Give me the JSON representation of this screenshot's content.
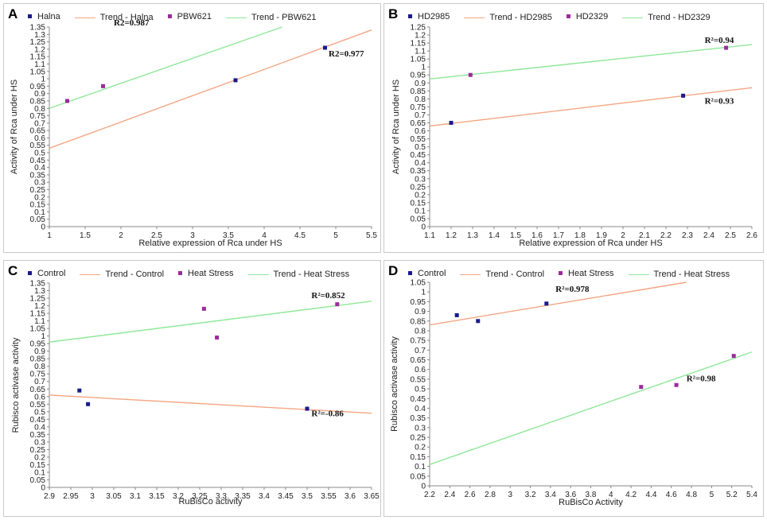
{
  "colors": {
    "series_a": "#1a1a8c",
    "series_b": "#9b2b9b",
    "trend_a": "#f4a783",
    "trend_b": "#8fe89a",
    "axis": "#888888"
  },
  "chart_data": [
    {
      "panel": "A",
      "type": "scatter",
      "legend": [
        "Halna",
        "Trend - Halna",
        "PBW621",
        "Trend - PBW621"
      ],
      "xlabel": "Relative expression of Rca under HS",
      "ylabel": "Activity of Rca under HS",
      "xlim": [
        1,
        5.5
      ],
      "ylim": [
        0,
        1.35
      ],
      "xticks": [
        1,
        1.5,
        2,
        2.5,
        3,
        3.5,
        4,
        4.5,
        5,
        5.5
      ],
      "xtick_labels": [
        "1",
        "1.5",
        "2",
        "2.5",
        "3",
        "3.5",
        "4",
        "4.5",
        "5",
        "5.5"
      ],
      "yticks": [
        0,
        0.05,
        0.1,
        0.15,
        0.2,
        0.25,
        0.3,
        0.35,
        0.4,
        0.45,
        0.5,
        0.55,
        0.6,
        0.65,
        0.7,
        0.75,
        0.8,
        0.85,
        0.9,
        0.95,
        1,
        1.05,
        1.1,
        1.15,
        1.2,
        1.25,
        1.3,
        1.35
      ],
      "ytick_labels": [
        "0",
        "0.05",
        "0.1",
        "0.15",
        "0.2",
        "0.25",
        "0.3",
        "0.35",
        "0.4",
        "0.45",
        "0.5",
        "0.55",
        "0.6",
        "0.65",
        "0.7",
        "0.75",
        "0.8",
        "0.85",
        "0.9",
        "0.95",
        "1",
        "1.05",
        "1.1",
        "1.15",
        "1.2",
        "1.25",
        "1.3",
        "1.35"
      ],
      "series": [
        {
          "name": "Halna",
          "points": [
            [
              3.6,
              0.99
            ],
            [
              4.85,
              1.21
            ]
          ],
          "trend": [
            [
              1,
              0.53
            ],
            [
              5.5,
              1.33
            ]
          ]
        },
        {
          "name": "PBW621",
          "points": [
            [
              1.25,
              0.85
            ],
            [
              1.75,
              0.95
            ]
          ],
          "trend": [
            [
              1,
              0.8
            ],
            [
              4.25,
              1.35
            ]
          ]
        }
      ],
      "annotations": [
        {
          "text": "R2=0.987",
          "x": 1.9,
          "y": 1.36
        },
        {
          "text": "R2=0.977",
          "x": 4.9,
          "y": 1.15
        }
      ]
    },
    {
      "panel": "B",
      "type": "scatter",
      "legend": [
        "HD2985",
        "Trend - HD2985",
        "HD2329",
        "Trend - HD2329"
      ],
      "xlabel": "Relative expression of Rca under HS",
      "ylabel": "Activity of Rca under HS",
      "xlim": [
        1.1,
        2.6
      ],
      "ylim": [
        0,
        1.25
      ],
      "xticks": [
        1.1,
        1.2,
        1.3,
        1.4,
        1.5,
        1.6,
        1.7,
        1.8,
        1.9,
        2,
        2.1,
        2.2,
        2.3,
        2.4,
        2.5,
        2.6
      ],
      "xtick_labels": [
        "1.1",
        "1.2",
        "1.3",
        "1.4",
        "1.5",
        "1.6",
        "1.7",
        "1.8",
        "1.9",
        "2",
        "2.1",
        "2.2",
        "2.3",
        "2.4",
        "2.5",
        "2.6"
      ],
      "yticks": [
        0,
        0.05,
        0.1,
        0.15,
        0.2,
        0.25,
        0.3,
        0.35,
        0.4,
        0.45,
        0.5,
        0.55,
        0.6,
        0.65,
        0.7,
        0.75,
        0.8,
        0.85,
        0.9,
        0.95,
        1,
        1.05,
        1.1,
        1.15,
        1.2,
        1.25
      ],
      "ytick_labels": [
        "0",
        "0.05",
        "0.1",
        "0.15",
        "0.2",
        "0.25",
        "0.3",
        "0.35",
        "0.4",
        "0.45",
        "0.5",
        "0.55",
        "0.6",
        "0.65",
        "0.7",
        "0.75",
        "0.8",
        "0.85",
        "0.9",
        "0.95",
        "1",
        "1.05",
        "1.1",
        "1.15",
        "1.2",
        "1.25"
      ],
      "series": [
        {
          "name": "HD2985",
          "points": [
            [
              1.2,
              0.65
            ],
            [
              2.28,
              0.82
            ]
          ],
          "trend": [
            [
              1.1,
              0.63
            ],
            [
              2.6,
              0.87
            ]
          ]
        },
        {
          "name": "HD2329",
          "points": [
            [
              1.29,
              0.95
            ],
            [
              2.48,
              1.12
            ]
          ],
          "trend": [
            [
              1.1,
              0.925
            ],
            [
              2.6,
              1.14
            ]
          ]
        }
      ],
      "annotations": [
        {
          "text": "R²=0.94",
          "x": 2.38,
          "y": 1.15
        },
        {
          "text": "R²=0.93",
          "x": 2.38,
          "y": 0.77
        }
      ]
    },
    {
      "panel": "C",
      "type": "scatter",
      "legend": [
        "Control",
        "Trend - Control",
        "Heat Stress",
        "Trend - Heat Stress"
      ],
      "xlabel": "RuBisCo activity",
      "ylabel": "Rubisco activase activity",
      "xlim": [
        2.9,
        3.65
      ],
      "ylim": [
        0,
        1.35
      ],
      "xticks": [
        2.9,
        2.95,
        3,
        3.05,
        3.1,
        3.15,
        3.2,
        3.25,
        3.3,
        3.35,
        3.4,
        3.45,
        3.5,
        3.55,
        3.6,
        3.65
      ],
      "xtick_labels": [
        "2.9",
        "2.95",
        "3",
        "3.05",
        "3.1",
        "3.15",
        "3.2",
        "3.25",
        "3.3",
        "3.35",
        "3.4",
        "3.45",
        "3.5",
        "3.55",
        "3.6",
        "3.65"
      ],
      "yticks": [
        0,
        0.05,
        0.1,
        0.15,
        0.2,
        0.25,
        0.3,
        0.35,
        0.4,
        0.45,
        0.5,
        0.55,
        0.6,
        0.65,
        0.7,
        0.75,
        0.8,
        0.85,
        0.9,
        0.95,
        1,
        1.05,
        1.1,
        1.15,
        1.2,
        1.25,
        1.3,
        1.35
      ],
      "ytick_labels": [
        "0",
        "0.05",
        "0.1",
        "0.15",
        "0.2",
        "0.25",
        "0.3",
        "0.35",
        "0.4",
        "0.45",
        "0.5",
        "0.55",
        "0.6",
        "0.65",
        "0.7",
        "0.75",
        "0.8",
        "0.85",
        "0.9",
        "0.95",
        "1",
        "1.05",
        "1.1",
        "1.15",
        "1.2",
        "1.25",
        "1.3",
        "1.35"
      ],
      "series": [
        {
          "name": "Control",
          "points": [
            [
              2.97,
              0.64
            ],
            [
              2.99,
              0.55
            ],
            [
              3.5,
              0.52
            ]
          ],
          "trend": [
            [
              2.9,
              0.61
            ],
            [
              3.65,
              0.49
            ]
          ]
        },
        {
          "name": "Heat Stress",
          "points": [
            [
              3.26,
              1.18
            ],
            [
              3.29,
              0.99
            ],
            [
              3.57,
              1.21
            ]
          ],
          "trend": [
            [
              2.9,
              0.96
            ],
            [
              3.65,
              1.23
            ]
          ]
        }
      ],
      "annotations": [
        {
          "text": "R²=0.852",
          "x": 3.51,
          "y": 1.25
        },
        {
          "text": "R²=-0.86",
          "x": 3.51,
          "y": 0.47
        }
      ]
    },
    {
      "panel": "D",
      "type": "scatter",
      "legend": [
        "Control",
        "Trend - Control",
        "Heat Stress",
        "Trend - Heat Stress"
      ],
      "xlabel": "RuBisCo Activity",
      "ylabel": "Rubisco activase activity",
      "xlim": [
        2.2,
        5.4
      ],
      "ylim": [
        0,
        1.05
      ],
      "xticks": [
        2.2,
        2.4,
        2.6,
        2.8,
        3,
        3.2,
        3.4,
        3.6,
        3.8,
        4,
        4.2,
        4.4,
        4.6,
        4.8,
        5,
        5.2,
        5.4
      ],
      "xtick_labels": [
        "2.2",
        "2.4",
        "2.6",
        "2.8",
        "3",
        "3.2",
        "3.4",
        "3.6",
        "3.8",
        "4",
        "4.2",
        "4.4",
        "4.6",
        "4.8",
        "5",
        "5.2",
        "5.4"
      ],
      "yticks": [
        0,
        0.05,
        0.1,
        0.15,
        0.2,
        0.25,
        0.3,
        0.35,
        0.4,
        0.45,
        0.5,
        0.55,
        0.6,
        0.65,
        0.7,
        0.75,
        0.8,
        0.85,
        0.9,
        0.95,
        1,
        1.05
      ],
      "ytick_labels": [
        "0",
        "0.05",
        "0.1",
        "0.15",
        "0.2",
        "0.25",
        "0.3",
        "0.35",
        "0.4",
        "0.45",
        "0.5",
        "0.55",
        "0.6",
        "0.65",
        "0.7",
        "0.75",
        "0.8",
        "0.85",
        "0.9",
        "0.95",
        "1",
        "1.05"
      ],
      "series": [
        {
          "name": "Control",
          "points": [
            [
              2.47,
              0.88
            ],
            [
              2.68,
              0.85
            ],
            [
              3.36,
              0.94
            ]
          ],
          "trend": [
            [
              2.2,
              0.83
            ],
            [
              4.75,
              1.05
            ]
          ]
        },
        {
          "name": "Heat Stress",
          "points": [
            [
              4.3,
              0.51
            ],
            [
              4.65,
              0.52
            ],
            [
              5.22,
              0.67
            ]
          ],
          "trend": [
            [
              2.2,
              0.11
            ],
            [
              5.4,
              0.69
            ]
          ]
        }
      ],
      "annotations": [
        {
          "text": "R²=0.978",
          "x": 3.45,
          "y": 1.0
        },
        {
          "text": "R²=0.98",
          "x": 4.75,
          "y": 0.54
        }
      ]
    }
  ]
}
